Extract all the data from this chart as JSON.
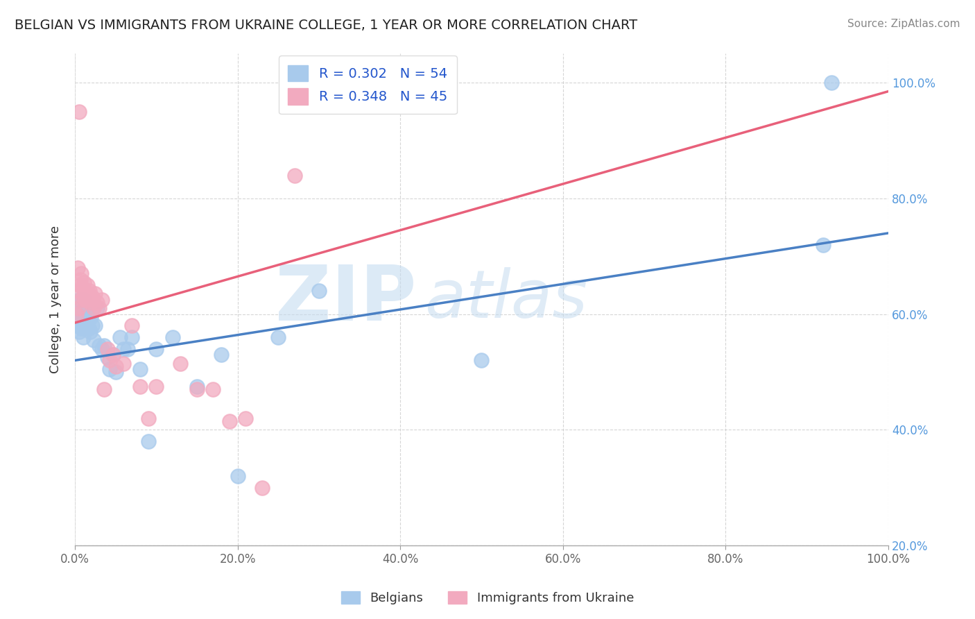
{
  "title": "BELGIAN VS IMMIGRANTS FROM UKRAINE COLLEGE, 1 YEAR OR MORE CORRELATION CHART",
  "source": "Source: ZipAtlas.com",
  "ylabel": "College, 1 year or more",
  "xlabel": "",
  "watermark_zip": "ZIP",
  "watermark_atlas": "atlas",
  "belgian_R": 0.302,
  "belgian_N": 54,
  "ukraine_R": 0.348,
  "ukraine_N": 45,
  "xlim": [
    0.0,
    1.0
  ],
  "ylim": [
    0.2,
    1.05
  ],
  "blue_color": "#A8CAEC",
  "pink_color": "#F2AABF",
  "blue_line_color": "#4A80C4",
  "pink_line_color": "#E8607A",
  "background": "#FFFFFF",
  "grid_color": "#CCCCCC",
  "blue_intercept": 0.52,
  "blue_slope": 0.22,
  "pink_intercept": 0.585,
  "pink_slope": 0.4,
  "belgian_x": [
    0.002,
    0.003,
    0.004,
    0.005,
    0.005,
    0.006,
    0.007,
    0.007,
    0.008,
    0.008,
    0.009,
    0.009,
    0.01,
    0.01,
    0.011,
    0.011,
    0.012,
    0.013,
    0.014,
    0.014,
    0.015,
    0.016,
    0.017,
    0.018,
    0.019,
    0.02,
    0.021,
    0.022,
    0.023,
    0.025,
    0.027,
    0.03,
    0.033,
    0.036,
    0.04,
    0.043,
    0.047,
    0.05,
    0.055,
    0.06,
    0.065,
    0.07,
    0.08,
    0.09,
    0.1,
    0.12,
    0.15,
    0.18,
    0.2,
    0.25,
    0.3,
    0.5,
    0.92,
    0.93
  ],
  "belgian_y": [
    0.595,
    0.58,
    0.61,
    0.57,
    0.625,
    0.6,
    0.59,
    0.615,
    0.575,
    0.605,
    0.595,
    0.58,
    0.61,
    0.56,
    0.625,
    0.595,
    0.575,
    0.61,
    0.59,
    0.58,
    0.6,
    0.59,
    0.575,
    0.61,
    0.57,
    0.595,
    0.58,
    0.61,
    0.555,
    0.58,
    0.61,
    0.545,
    0.54,
    0.545,
    0.525,
    0.505,
    0.53,
    0.5,
    0.56,
    0.54,
    0.54,
    0.56,
    0.505,
    0.38,
    0.54,
    0.56,
    0.475,
    0.53,
    0.32,
    0.56,
    0.64,
    0.52,
    0.72,
    1.0
  ],
  "ukraine_x": [
    0.002,
    0.003,
    0.004,
    0.005,
    0.005,
    0.006,
    0.007,
    0.008,
    0.008,
    0.009,
    0.01,
    0.011,
    0.012,
    0.013,
    0.014,
    0.015,
    0.016,
    0.017,
    0.018,
    0.019,
    0.02,
    0.021,
    0.022,
    0.023,
    0.025,
    0.027,
    0.03,
    0.033,
    0.036,
    0.04,
    0.043,
    0.047,
    0.05,
    0.06,
    0.07,
    0.08,
    0.09,
    0.1,
    0.13,
    0.15,
    0.17,
    0.19,
    0.21,
    0.23,
    0.27
  ],
  "ukraine_y": [
    0.6,
    0.68,
    0.61,
    0.95,
    0.64,
    0.65,
    0.66,
    0.625,
    0.67,
    0.645,
    0.63,
    0.655,
    0.64,
    0.625,
    0.635,
    0.65,
    0.625,
    0.635,
    0.64,
    0.625,
    0.62,
    0.63,
    0.625,
    0.61,
    0.635,
    0.62,
    0.61,
    0.625,
    0.47,
    0.54,
    0.52,
    0.53,
    0.51,
    0.515,
    0.58,
    0.475,
    0.42,
    0.475,
    0.515,
    0.47,
    0.47,
    0.415,
    0.42,
    0.3,
    0.84
  ]
}
